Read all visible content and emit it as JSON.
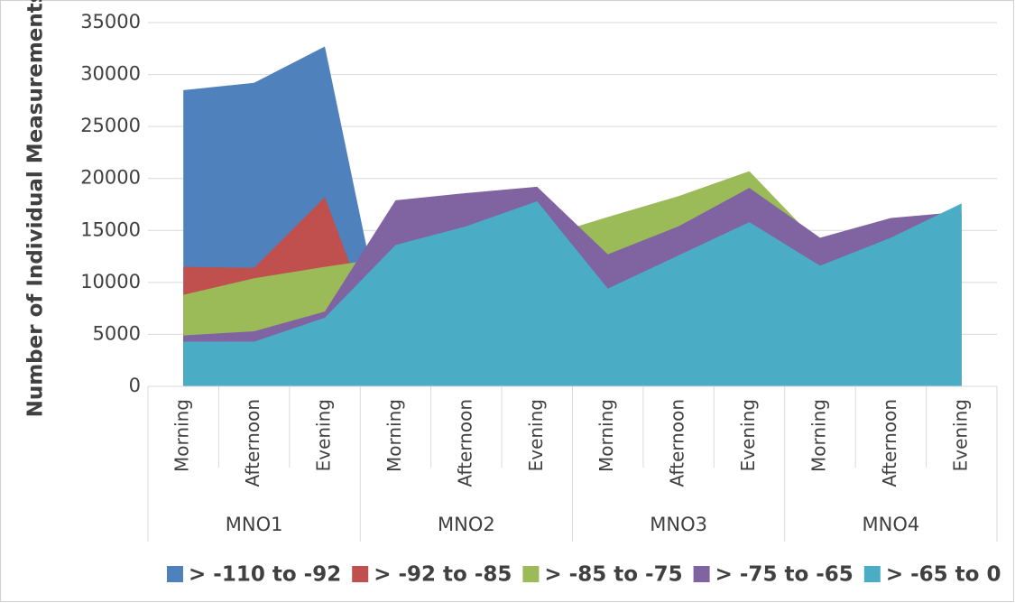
{
  "chart_data": {
    "type": "area",
    "y_label": "Number of Individual Measurements",
    "categories": [
      "Morning",
      "Afternoon",
      "Evening",
      "Morning",
      "Afternoon",
      "Evening",
      "Morning",
      "Afternoon",
      "Evening",
      "Morning",
      "Afternoon",
      "Evening"
    ],
    "groups": [
      "MNO1",
      "MNO2",
      "MNO3",
      "MNO4"
    ],
    "series": [
      {
        "name": "> -110 to -92",
        "color": "#4f81bd",
        "values": [
          28500,
          29200,
          32700,
          0,
          0,
          0,
          0,
          0,
          0,
          0,
          0,
          0
        ]
      },
      {
        "name": "> -92 to -85",
        "color": "#c0504d",
        "values": [
          11500,
          11400,
          18200,
          0,
          0,
          0,
          0,
          0,
          0,
          0,
          0,
          0
        ]
      },
      {
        "name": "> -85 to -75",
        "color": "#9bbb59",
        "values": [
          8800,
          10400,
          11500,
          12500,
          13500,
          14200,
          16300,
          18300,
          20700,
          13600,
          15000,
          16500
        ]
      },
      {
        "name": "> -75 to -65",
        "color": "#8064a2",
        "values": [
          4900,
          5300,
          7200,
          17900,
          18600,
          19200,
          12700,
          15400,
          19100,
          14300,
          16200,
          16800
        ]
      },
      {
        "name": "> -65 to 0",
        "color": "#4bacc6",
        "values": [
          4300,
          4300,
          6600,
          13600,
          15400,
          17800,
          9400,
          12600,
          15800,
          11600,
          14300,
          17600
        ]
      }
    ],
    "ylim": [
      0,
      35000
    ],
    "yticks": [
      0,
      5000,
      10000,
      15000,
      20000,
      25000,
      30000,
      35000
    ],
    "grid": true,
    "legend": "bottom"
  }
}
